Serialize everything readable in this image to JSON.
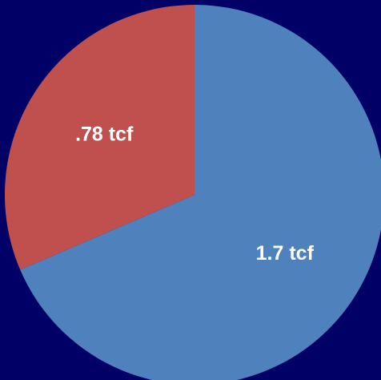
{
  "chart_data": {
    "type": "pie",
    "values": [
      1.7,
      0.78
    ],
    "value_labels": [
      "1.7 tcf",
      ".78 tcf"
    ],
    "colors": [
      "#4f81bd",
      "#c0504d"
    ],
    "background": "#000066"
  }
}
